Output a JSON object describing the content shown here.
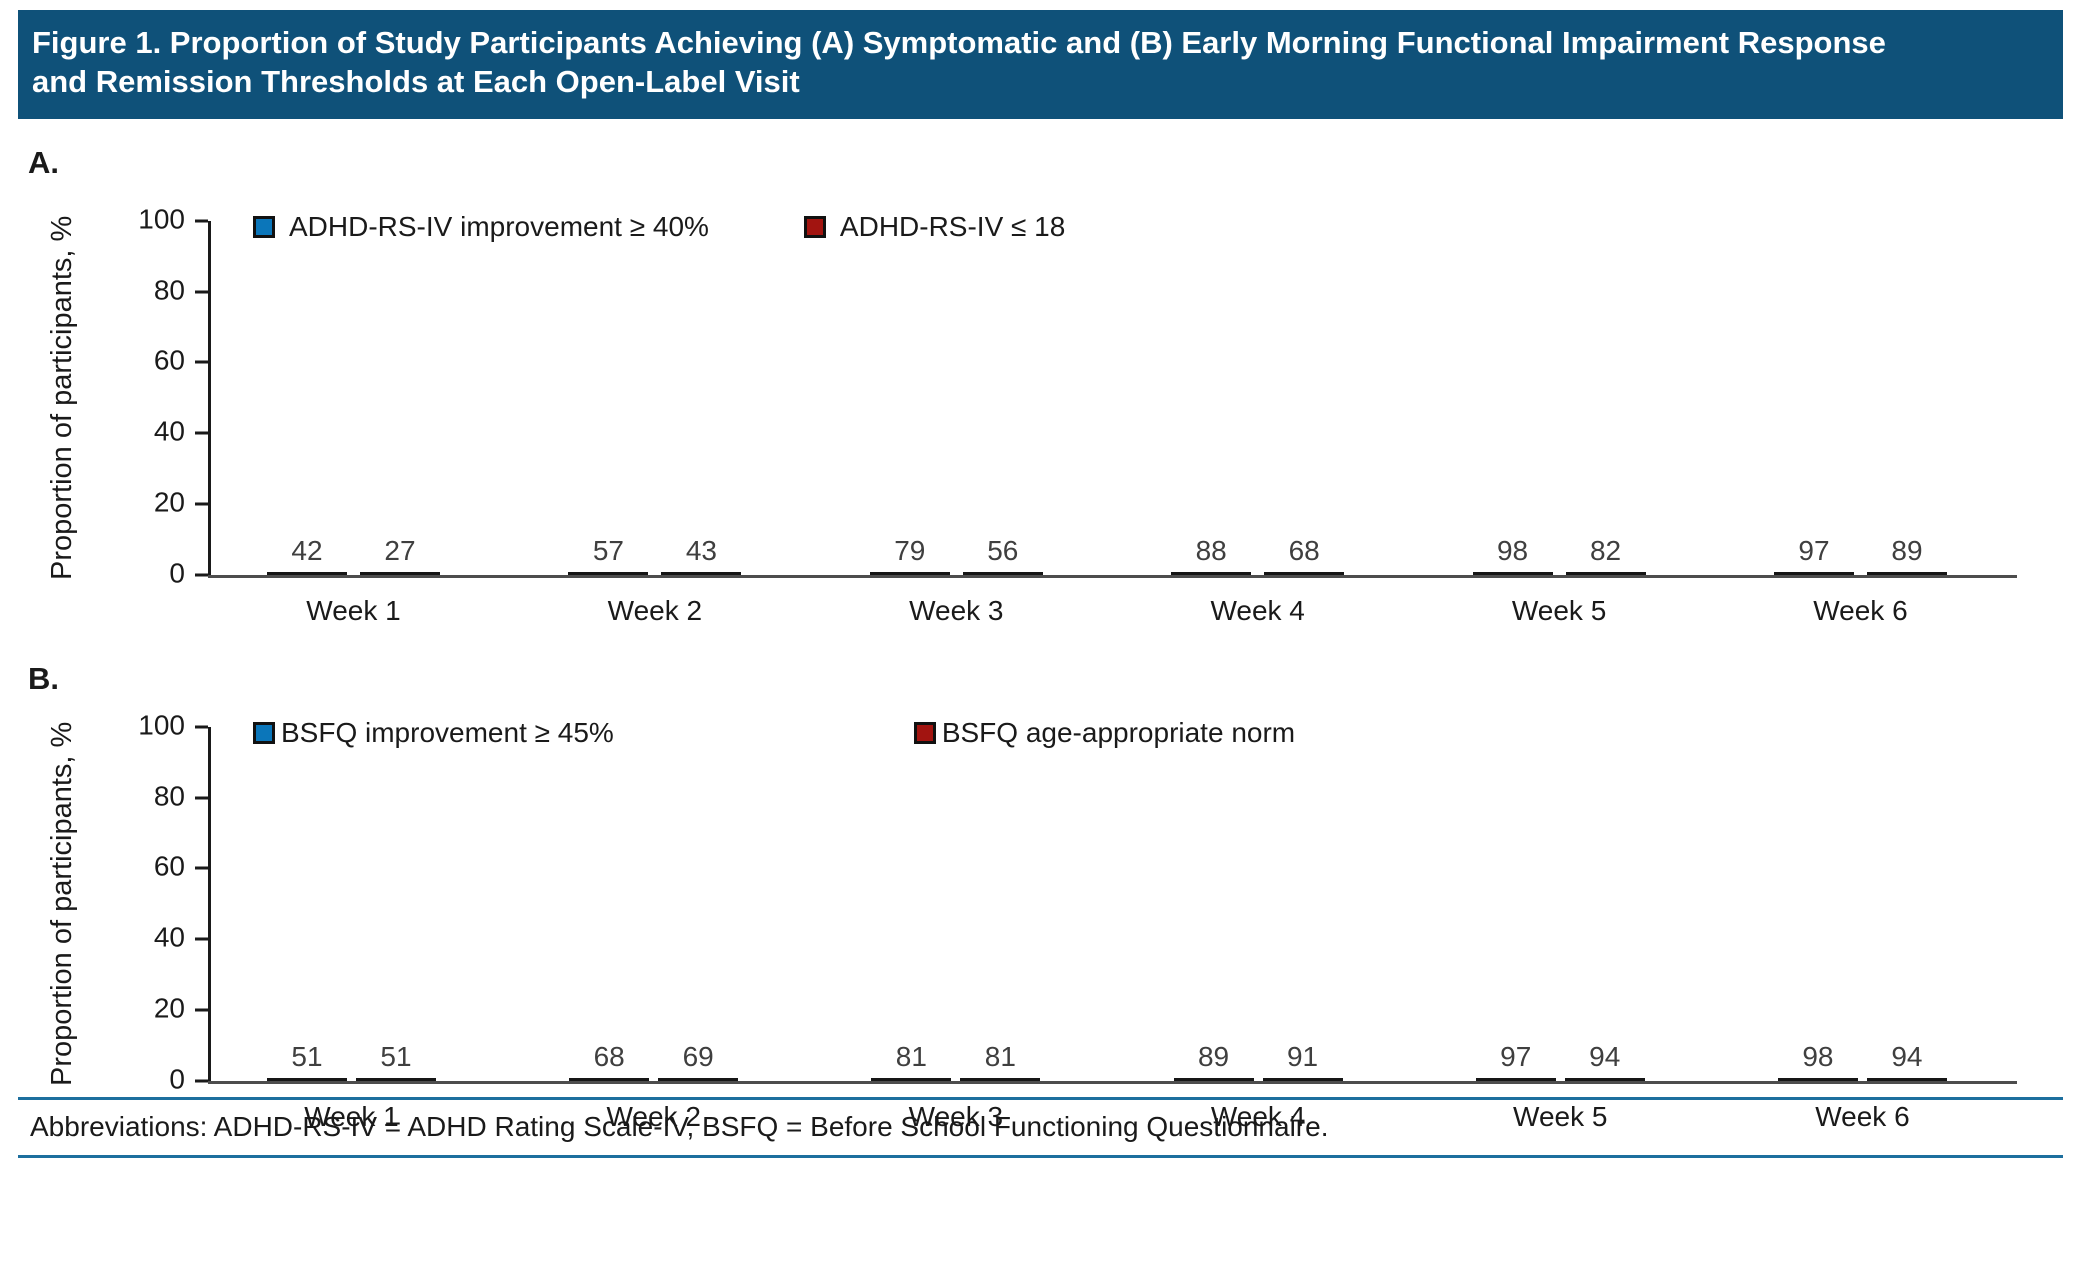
{
  "banner": {
    "line1": "Figure 1. Proportion of Study Participants Achieving (A) Symptomatic and (B) Early Morning Functional Impairment Response",
    "line2": "and Remission Thresholds at Each Open-Label Visit"
  },
  "footer": {
    "text": "Abbreviations: ADHD-RS-IV = ADHD Rating Scale-IV, BSFQ = Before School Functioning Questionnaire."
  },
  "colors": {
    "banner_bg": "#0f5179",
    "series_blue": "#0b76ba",
    "series_red": "#a21410",
    "divider": "#1d6f9e"
  },
  "chart_data": [
    {
      "type": "bar",
      "panel_label": "A.",
      "categories": [
        "Week 1",
        "Week 2",
        "Week 3",
        "Week 4",
        "Week 5",
        "Week 6"
      ],
      "series": [
        {
          "name": "ADHD-RS-IV improvement ≥ 40%",
          "color": "#0b76ba",
          "values": [
            42,
            57,
            79,
            88,
            98,
            97
          ]
        },
        {
          "name": "ADHD-RS-IV ≤ 18",
          "color": "#a21410",
          "values": [
            27,
            43,
            56,
            68,
            82,
            89
          ]
        }
      ],
      "xlabel": "",
      "ylabel": "Proportion of participants, %",
      "yticks": [
        0,
        20,
        40,
        60,
        80,
        100
      ],
      "ylim": [
        0,
        100
      ],
      "grid": false,
      "legend_position": "top-inside",
      "value_labels": true
    },
    {
      "type": "bar",
      "panel_label": "B.",
      "categories": [
        "Week 1",
        "Week 2",
        "Week 3",
        "Week 4",
        "Week 5",
        "Week 6"
      ],
      "series": [
        {
          "name": "BSFQ improvement ≥ 45%",
          "color": "#0b76ba",
          "values": [
            51,
            68,
            81,
            89,
            97,
            98
          ]
        },
        {
          "name": "BSFQ age-appropriate norm",
          "color": "#a21410",
          "values": [
            51,
            69,
            81,
            91,
            94,
            94
          ]
        }
      ],
      "xlabel": "",
      "ylabel": "Proportion of participants, %",
      "yticks": [
        0,
        20,
        40,
        60,
        80,
        100
      ],
      "ylim": [
        0,
        100
      ],
      "grid": false,
      "legend_position": "top-inside",
      "value_labels": true
    }
  ]
}
